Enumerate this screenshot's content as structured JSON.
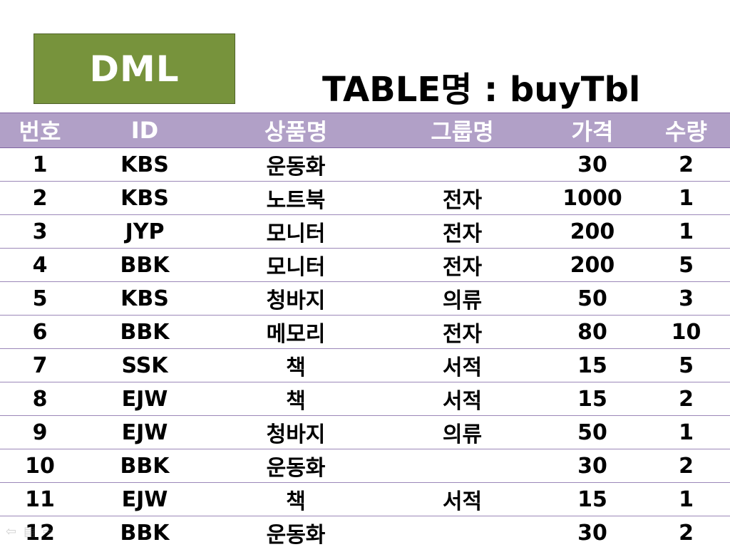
{
  "badge": {
    "label": "DML"
  },
  "title": {
    "text": "TABLE명 : buyTbl"
  },
  "table": {
    "headers": [
      "번호",
      "ID",
      "상품명",
      "그룹명",
      "가격",
      "수량"
    ],
    "rows": [
      [
        "1",
        "KBS",
        "운동화",
        "",
        "30",
        "2"
      ],
      [
        "2",
        "KBS",
        "노트북",
        "전자",
        "1000",
        "1"
      ],
      [
        "3",
        "JYP",
        "모니터",
        "전자",
        "200",
        "1"
      ],
      [
        "4",
        "BBK",
        "모니터",
        "전자",
        "200",
        "5"
      ],
      [
        "5",
        "KBS",
        "청바지",
        "의류",
        "50",
        "3"
      ],
      [
        "6",
        "BBK",
        "메모리",
        "전자",
        "80",
        "10"
      ],
      [
        "7",
        "SSK",
        "책",
        "서적",
        "15",
        "5"
      ],
      [
        "8",
        "EJW",
        "책",
        "서적",
        "15",
        "2"
      ],
      [
        "9",
        "EJW",
        "청바지",
        "의류",
        "50",
        "1"
      ],
      [
        "10",
        "BBK",
        "운동화",
        "",
        "30",
        "2"
      ],
      [
        "11",
        "EJW",
        "책",
        "서적",
        "15",
        "1"
      ],
      [
        "12",
        "BBK",
        "운동화",
        "",
        "30",
        "2"
      ]
    ]
  },
  "nav": {
    "prev_icon": "arrow-left-icon",
    "menu_icon": "menu-icon",
    "next_icon": "arrow-right-icon"
  },
  "colors": {
    "badge_bg": "#77933c",
    "header_bg": "#b1a0c7",
    "row_border": "#9b87b8"
  }
}
